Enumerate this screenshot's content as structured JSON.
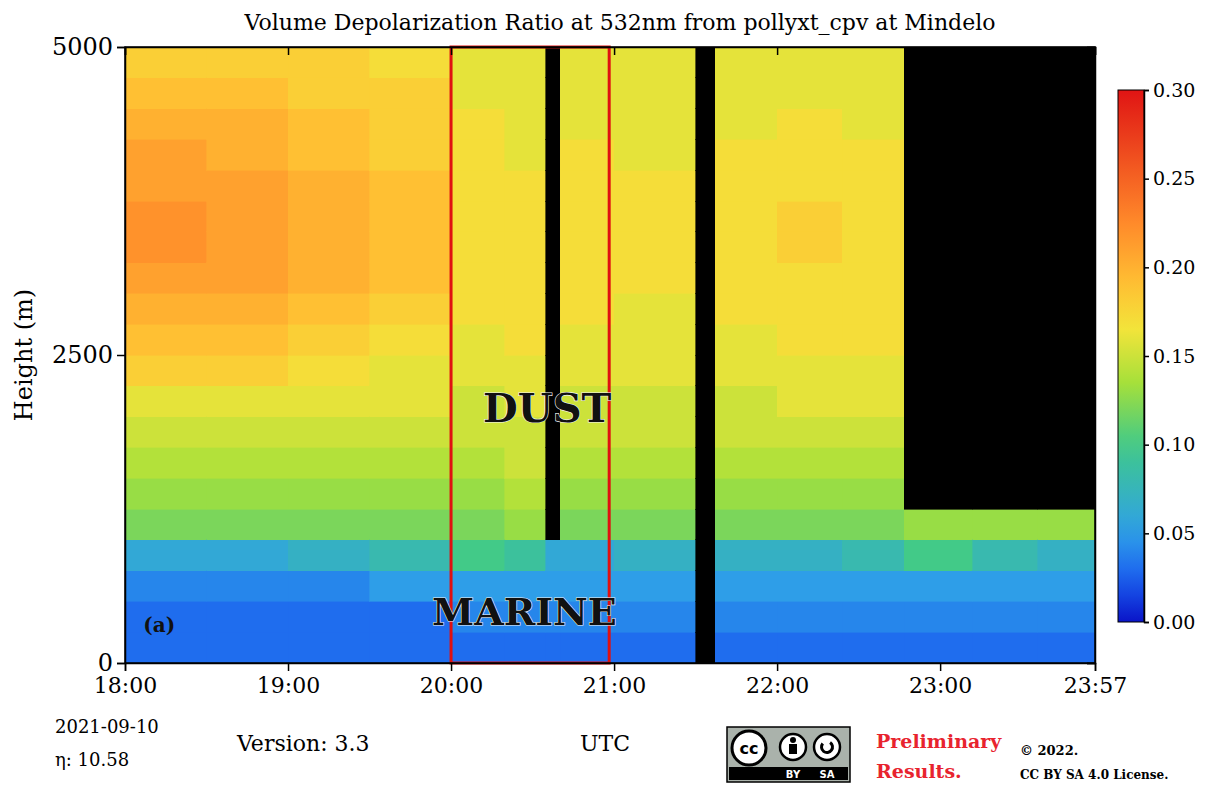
{
  "chart_data": {
    "type": "heatmap",
    "title": "Volume Depolarization Ratio at 532nm from pollyxt_cpv at Mindelo",
    "x_label": "UTC",
    "y_label": "Height (m)",
    "xlim": [
      18,
      23.95
    ],
    "xticks": [
      {
        "value": 18,
        "label": "18:00"
      },
      {
        "value": 19,
        "label": "19:00"
      },
      {
        "value": 20,
        "label": "20:00"
      },
      {
        "value": 21,
        "label": "21:00"
      },
      {
        "value": 22,
        "label": "22:00"
      },
      {
        "value": 23,
        "label": "23:00"
      },
      {
        "value": 23.95,
        "label": "23:57"
      }
    ],
    "ylim": [
      0,
      5000
    ],
    "yticks": [
      0,
      2500,
      5000
    ],
    "x_edges": [
      18,
      18.5,
      19,
      19.5,
      20,
      20.33,
      20.58,
      20.67,
      21,
      21.5,
      21.62,
      22,
      22.4,
      22.78,
      23.2,
      23.6,
      23.95
    ],
    "y_edges": [
      0,
      250,
      500,
      750,
      1000,
      1250,
      1500,
      1750,
      2000,
      2250,
      2500,
      2750,
      3000,
      3250,
      3500,
      3750,
      4000,
      4250,
      4500,
      4750,
      5000
    ],
    "values": [
      [
        0.03,
        0.03,
        0.04,
        0.06,
        0.12,
        0.13,
        0.14,
        0.15,
        0.16,
        0.18,
        0.19,
        0.2,
        0.21,
        0.22,
        0.22,
        0.21,
        0.21,
        0.2,
        0.19,
        0.18
      ],
      [
        0.03,
        0.03,
        0.04,
        0.06,
        0.12,
        0.13,
        0.14,
        0.15,
        0.16,
        0.18,
        0.19,
        0.2,
        0.21,
        0.21,
        0.21,
        0.21,
        0.2,
        0.2,
        0.19,
        0.18
      ],
      [
        0.03,
        0.03,
        0.04,
        0.07,
        0.12,
        0.13,
        0.14,
        0.15,
        0.16,
        0.17,
        0.18,
        0.19,
        0.2,
        0.2,
        0.2,
        0.2,
        0.19,
        0.19,
        0.18,
        0.18
      ],
      [
        0.03,
        0.03,
        0.05,
        0.08,
        0.12,
        0.13,
        0.14,
        0.15,
        0.16,
        0.16,
        0.17,
        0.18,
        0.19,
        0.19,
        0.19,
        0.19,
        0.18,
        0.18,
        0.18,
        0.17
      ],
      [
        0.03,
        0.04,
        0.05,
        0.1,
        0.12,
        0.13,
        0.14,
        0.15,
        0.15,
        0.16,
        0.16,
        0.17,
        0.17,
        0.17,
        0.17,
        0.17,
        0.17,
        0.17,
        0.16,
        0.16
      ],
      [
        0.03,
        0.04,
        0.05,
        0.09,
        0.13,
        0.14,
        0.15,
        0.15,
        0.16,
        0.16,
        0.17,
        0.17,
        0.17,
        0.17,
        0.17,
        0.17,
        0.16,
        0.16,
        0.16,
        0.16
      ],
      [
        0.03,
        0.04,
        0.05,
        0.06,
        null,
        null,
        null,
        null,
        null,
        null,
        null,
        null,
        null,
        null,
        null,
        null,
        null,
        null,
        null,
        null
      ],
      [
        0.03,
        0.04,
        0.05,
        0.06,
        0.12,
        0.13,
        0.14,
        0.15,
        0.15,
        0.16,
        0.16,
        0.17,
        0.17,
        0.17,
        0.17,
        0.17,
        0.17,
        0.16,
        0.16,
        0.16
      ],
      [
        0.03,
        0.04,
        0.05,
        0.07,
        0.12,
        0.13,
        0.14,
        0.15,
        0.15,
        0.16,
        0.16,
        0.16,
        0.17,
        0.17,
        0.17,
        0.17,
        0.16,
        0.16,
        0.16,
        0.16
      ],
      [
        null,
        null,
        null,
        null,
        null,
        null,
        null,
        null,
        null,
        null,
        null,
        null,
        null,
        null,
        null,
        null,
        null,
        null,
        null,
        null
      ],
      [
        0.03,
        0.04,
        0.05,
        0.07,
        0.12,
        0.13,
        0.14,
        0.15,
        0.15,
        0.16,
        0.16,
        0.17,
        0.17,
        0.17,
        0.17,
        0.17,
        0.17,
        0.16,
        0.16,
        0.16
      ],
      [
        0.03,
        0.04,
        0.05,
        0.07,
        0.12,
        0.13,
        0.14,
        0.15,
        0.16,
        0.16,
        0.17,
        0.17,
        0.17,
        0.18,
        0.18,
        0.17,
        0.17,
        0.17,
        0.16,
        0.16
      ],
      [
        0.03,
        0.04,
        0.05,
        0.08,
        0.12,
        0.13,
        0.14,
        0.15,
        0.16,
        0.16,
        0.17,
        0.17,
        0.17,
        0.17,
        0.17,
        0.17,
        0.17,
        0.16,
        0.16,
        0.16
      ],
      [
        0.03,
        0.04,
        0.05,
        0.1,
        0.13,
        null,
        null,
        null,
        null,
        null,
        null,
        null,
        null,
        null,
        null,
        null,
        null,
        null,
        null,
        null
      ],
      [
        0.03,
        0.04,
        0.05,
        0.08,
        0.13,
        null,
        null,
        null,
        null,
        null,
        null,
        null,
        null,
        null,
        null,
        null,
        null,
        null,
        null,
        null
      ],
      [
        0.03,
        0.04,
        0.05,
        0.07,
        0.13,
        null,
        null,
        null,
        null,
        null,
        null,
        null,
        null,
        null,
        null,
        null,
        null,
        null,
        null,
        null
      ]
    ],
    "colorbar": {
      "range": [
        0,
        0.3
      ],
      "ticks": [
        {
          "value": 0,
          "label": "0.00"
        },
        {
          "value": 0.05,
          "label": "0.05"
        },
        {
          "value": 0.1,
          "label": "0.10"
        },
        {
          "value": 0.15,
          "label": "0.15"
        },
        {
          "value": 0.2,
          "label": "0.20"
        },
        {
          "value": 0.25,
          "label": "0.25"
        },
        {
          "value": 0.3,
          "label": "0.30"
        }
      ]
    },
    "highlight_box": {
      "x": [
        20.0,
        20.97
      ],
      "y": [
        0,
        5000
      ]
    },
    "annotations": [
      {
        "text": "DUST",
        "x": 20.59,
        "y": 2070
      },
      {
        "text": "MARINE",
        "x": 20.45,
        "y": 414
      },
      {
        "text": "(a)",
        "x": 18.21,
        "y": 310
      }
    ],
    "date": "2021-09-10",
    "eta": "η:  10.58",
    "version": "Version: 3.3",
    "badge": [
      "cc",
      "BY",
      "SA"
    ],
    "notice": [
      "Preliminary",
      "Results."
    ],
    "copyright": "©  2022.",
    "license": "CC BY SA 4.0 License."
  }
}
